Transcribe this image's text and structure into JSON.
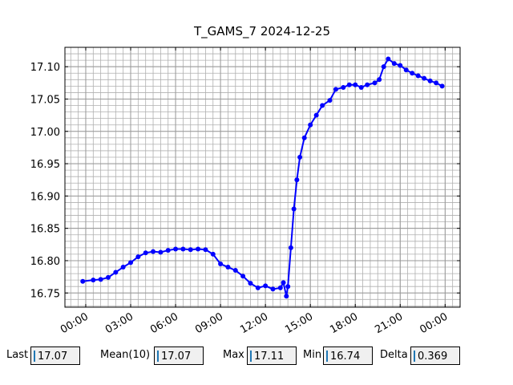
{
  "chart_data": {
    "type": "line",
    "title": "T_GAMS_7 2024-12-25",
    "x": [
      -0.2,
      0.5,
      1.0,
      1.5,
      2.0,
      2.5,
      3.0,
      3.5,
      4.0,
      4.5,
      5.0,
      5.5,
      6.0,
      6.5,
      7.0,
      7.5,
      8.0,
      8.5,
      9.0,
      9.5,
      10.0,
      10.5,
      11.0,
      11.5,
      12.0,
      12.5,
      13.0,
      13.2,
      13.4,
      13.5,
      13.7,
      13.9,
      14.1,
      14.3,
      14.6,
      15.0,
      15.4,
      15.8,
      16.3,
      16.7,
      17.2,
      17.6,
      18.0,
      18.4,
      18.8,
      19.3,
      19.6,
      19.9,
      20.2,
      20.6,
      21.0,
      21.4,
      21.8,
      22.2,
      22.6,
      23.0,
      23.4,
      23.8
    ],
    "series": [
      {
        "color": "#0000ff",
        "values": [
          16.768,
          16.77,
          16.771,
          16.774,
          16.782,
          16.79,
          16.797,
          16.806,
          16.812,
          16.814,
          16.813,
          16.816,
          16.818,
          16.818,
          16.817,
          16.818,
          16.817,
          16.81,
          16.795,
          16.79,
          16.785,
          16.776,
          16.765,
          16.758,
          16.761,
          16.756,
          16.758,
          16.766,
          16.745,
          16.76,
          16.82,
          16.88,
          16.925,
          16.96,
          16.99,
          17.01,
          17.025,
          17.04,
          17.048,
          17.065,
          17.068,
          17.072,
          17.072,
          17.068,
          17.072,
          17.075,
          17.08,
          17.1,
          17.112,
          17.105,
          17.102,
          17.095,
          17.09,
          17.086,
          17.082,
          17.078,
          17.075,
          17.07
        ]
      }
    ],
    "xlim": [
      -1.39,
      25.0
    ],
    "ylim": [
      16.728,
      17.13
    ],
    "xticks": [
      {
        "value": 0,
        "label": "00:00"
      },
      {
        "value": 3,
        "label": "03:00"
      },
      {
        "value": 6,
        "label": "06:00"
      },
      {
        "value": 9,
        "label": "09:00"
      },
      {
        "value": 12,
        "label": "12:00"
      },
      {
        "value": 15,
        "label": "15:00"
      },
      {
        "value": 18,
        "label": "18:00"
      },
      {
        "value": 21,
        "label": "21:00"
      },
      {
        "value": 24,
        "label": "00:00"
      }
    ],
    "yticks": [
      16.75,
      {
        "value": 16.8,
        "label": "16.80"
      },
      16.85,
      {
        "value": 16.9,
        "label": "16.90"
      },
      16.95,
      {
        "value": 17.0,
        "label": "17.00"
      },
      17.05,
      {
        "value": 17.1,
        "label": "17.10"
      }
    ],
    "xminorticks": [
      -1,
      -0.5,
      0,
      0.5,
      1,
      1.5,
      2,
      2.5,
      3,
      3.5,
      4,
      4.5,
      5,
      5.5,
      6,
      6.5,
      7,
      7.5,
      8,
      8.5,
      9,
      9.5,
      10,
      10.5,
      11,
      11.5,
      12,
      12.5,
      13,
      13.5,
      14,
      14.5,
      15,
      15.5,
      16,
      16.5,
      17,
      17.5,
      18,
      18.5,
      19,
      19.5,
      20,
      20.5,
      21,
      21.5,
      22,
      22.5,
      23,
      23.5,
      24,
      24.5,
      25
    ],
    "yminorticks": [
      16.73,
      16.74,
      16.75,
      16.76,
      16.77,
      16.78,
      16.79,
      16.8,
      16.81,
      16.82,
      16.83,
      16.84,
      16.85,
      16.86,
      16.87,
      16.88,
      16.89,
      16.9,
      16.91,
      16.92,
      16.93,
      16.94,
      16.95,
      16.96,
      16.97,
      16.98,
      16.99,
      17.0,
      17.01,
      17.02,
      17.03,
      17.04,
      17.05,
      17.06,
      17.07,
      17.08,
      17.09,
      17.1,
      17.11,
      17.12,
      17.13
    ],
    "grid": true
  },
  "readouts": [
    {
      "label": "Last",
      "value": "17.07"
    },
    {
      "label": "Mean(10)",
      "value": "17.07"
    },
    {
      "label": "Max",
      "value": "17.11"
    },
    {
      "label": "Min",
      "value": "16.74"
    },
    {
      "label": "Delta",
      "value": "0.369"
    }
  ]
}
